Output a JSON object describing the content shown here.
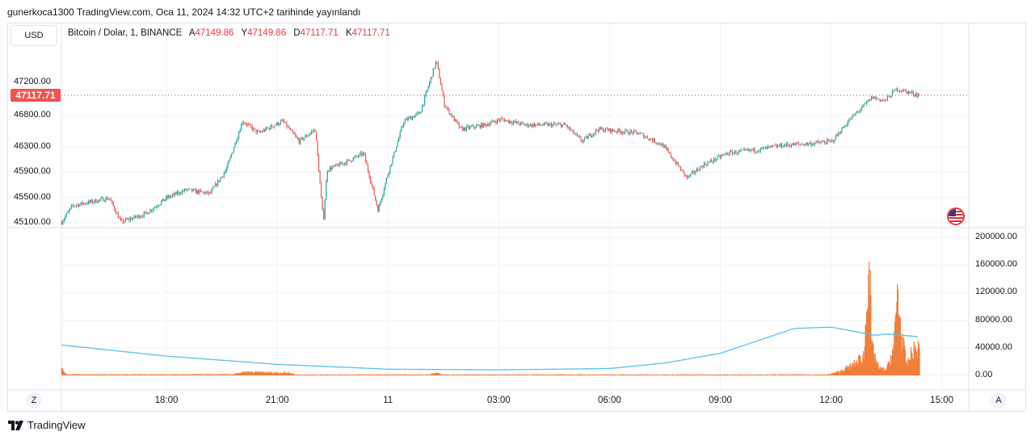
{
  "header": {
    "published": "gunerkoca1300 TradingView.com, Oca 11, 2024 14:32 UTC+2 tarihinde yayınlandı"
  },
  "currency_button": "USD",
  "legend": {
    "symbol": "Bitcoin / Dolar, 1, BINANCE",
    "open_label": "A",
    "open": "47149.86",
    "high_label": "Y",
    "high": "47149.86",
    "low_label": "D",
    "low": "47117.71",
    "close_label": "K",
    "close": "47117.71"
  },
  "last_price": "47117.71",
  "colors": {
    "up": "#26a69a",
    "down": "#ef5350",
    "volume": "#f07f3c",
    "volume_ma": "#5bc0eb",
    "price_line": "#f23645"
  },
  "time_axis_buttons": {
    "left": "Z",
    "right": "A"
  },
  "footer": {
    "brand": "TradingView"
  },
  "chart_data": [
    {
      "type": "candlestick",
      "title": "Bitcoin / Dolar, 1, BINANCE",
      "price_ticks": [
        "47200.00",
        "46800.00",
        "46300.00",
        "45900.00",
        "45500.00",
        "45100.00"
      ],
      "price_tick_values": [
        47200,
        46800,
        46300,
        45900,
        45500,
        45100
      ],
      "x_ticks": [
        "18:00",
        "21:00",
        "11",
        "03:00",
        "06:00",
        "09:00",
        "12:00",
        "15:00"
      ],
      "x_tick_hours": [
        18,
        21,
        24,
        27,
        30,
        33,
        36,
        39
      ],
      "close_path_hours_price": [
        [
          15.16,
          45110
        ],
        [
          15.46,
          45370
        ],
        [
          16.45,
          45490
        ],
        [
          16.77,
          45110
        ],
        [
          17.43,
          45240
        ],
        [
          18,
          45490
        ],
        [
          18.53,
          45620
        ],
        [
          19.18,
          45560
        ],
        [
          19.62,
          45940
        ],
        [
          20.06,
          46710
        ],
        [
          20.49,
          46520
        ],
        [
          21.15,
          46710
        ],
        [
          21.59,
          46390
        ],
        [
          22.03,
          46580
        ],
        [
          22.25,
          45110
        ],
        [
          22.35,
          45940
        ],
        [
          22.9,
          46070
        ],
        [
          23.34,
          46200
        ],
        [
          23.73,
          45300
        ],
        [
          24,
          45880
        ],
        [
          24.43,
          46710
        ],
        [
          24.87,
          46840
        ],
        [
          25.31,
          47670
        ],
        [
          25.53,
          46970
        ],
        [
          25.97,
          46580
        ],
        [
          26.62,
          46650
        ],
        [
          27.06,
          46740
        ],
        [
          27.72,
          46650
        ],
        [
          28.8,
          46650
        ],
        [
          29.25,
          46390
        ],
        [
          29.69,
          46580
        ],
        [
          30.12,
          46560
        ],
        [
          30.78,
          46520
        ],
        [
          31.44,
          46330
        ],
        [
          32.1,
          45810
        ],
        [
          32.53,
          46010
        ],
        [
          33.19,
          46200
        ],
        [
          34.06,
          46260
        ],
        [
          34.72,
          46330
        ],
        [
          35.37,
          46350
        ],
        [
          36.03,
          46390
        ],
        [
          36.47,
          46710
        ],
        [
          37.12,
          47090
        ],
        [
          37.45,
          47030
        ],
        [
          37.78,
          47220
        ],
        [
          38.4,
          47117.71
        ]
      ]
    },
    {
      "type": "bar",
      "title": "Volume",
      "y_ticks": [
        "200000.00",
        "160000.00",
        "120000.00",
        "80000.00",
        "40000.00",
        "0.00"
      ],
      "y_tick_values": [
        200000,
        160000,
        120000,
        80000,
        40000,
        0
      ],
      "volume_path_hours_value": [
        [
          15.16,
          9000
        ],
        [
          15.3,
          1500
        ],
        [
          19.8,
          1500
        ],
        [
          20.1,
          4500
        ],
        [
          21.3,
          4000
        ],
        [
          21.5,
          1200
        ],
        [
          25.1,
          1200
        ],
        [
          25.3,
          3500
        ],
        [
          25.5,
          1200
        ],
        [
          35.9,
          1200
        ],
        [
          36.2,
          5000
        ],
        [
          36.6,
          15000
        ],
        [
          36.9,
          30000
        ],
        [
          37.02,
          190000
        ],
        [
          37.1,
          40000
        ],
        [
          37.3,
          10000
        ],
        [
          37.5,
          8000
        ],
        [
          37.7,
          40000
        ],
        [
          37.8,
          125000
        ],
        [
          37.9,
          60000
        ],
        [
          38.05,
          15000
        ],
        [
          38.2,
          35000
        ],
        [
          38.4,
          40000
        ]
      ],
      "ma_path_hours_value": [
        [
          15.16,
          44000
        ],
        [
          18,
          28000
        ],
        [
          21,
          16000
        ],
        [
          24,
          9000
        ],
        [
          27,
          8000
        ],
        [
          30,
          10000
        ],
        [
          31.5,
          18000
        ],
        [
          33,
          32000
        ],
        [
          34,
          50000
        ],
        [
          35,
          68000
        ],
        [
          36,
          70000
        ],
        [
          37.2,
          58000
        ],
        [
          37.5,
          60000
        ],
        [
          38.4,
          56000
        ]
      ]
    }
  ]
}
